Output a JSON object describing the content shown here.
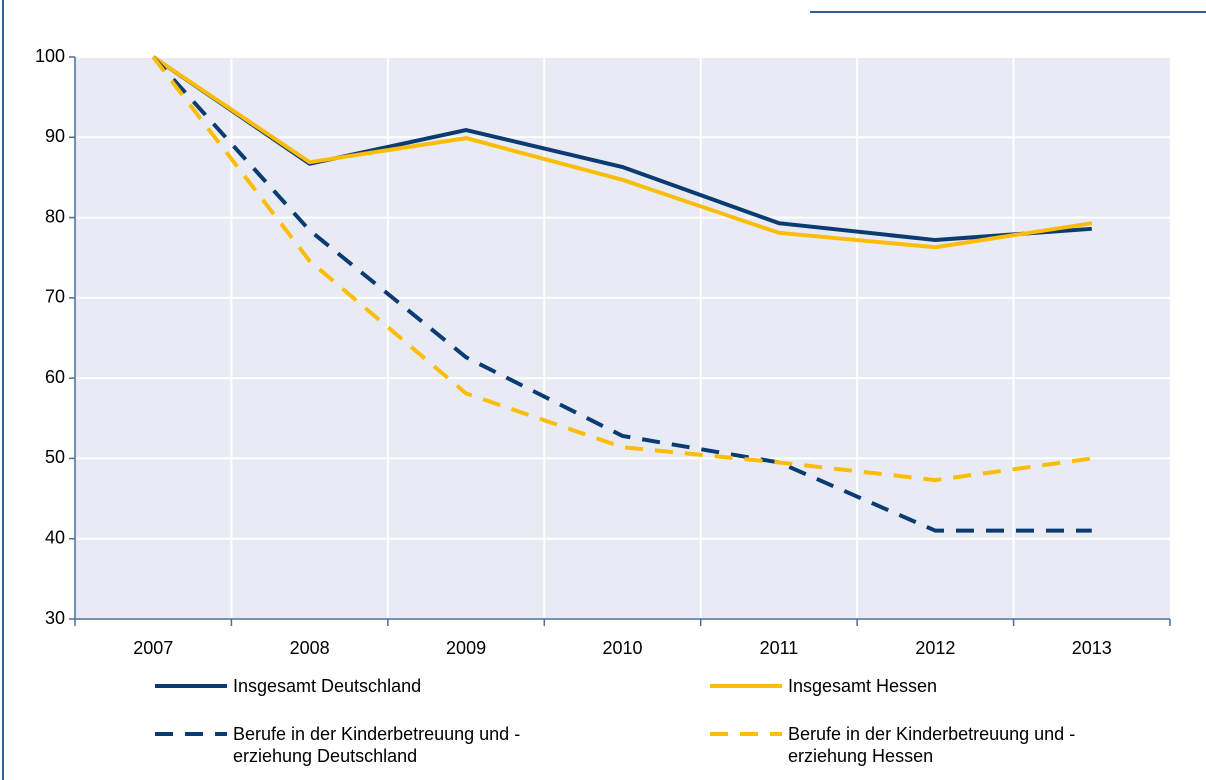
{
  "chart_data": {
    "type": "line",
    "categories": [
      "2007",
      "2008",
      "2009",
      "2010",
      "2011",
      "2012",
      "2013"
    ],
    "series": [
      {
        "name": "Insgesamt Deutschland",
        "color": "#0b3b73",
        "dash": false,
        "values": [
          100,
          86.7,
          90.9,
          86.3,
          79.3,
          77.2,
          78.6
        ]
      },
      {
        "name": "Insgesamt Hessen",
        "color": "#fbbc0a",
        "dash": false,
        "values": [
          100,
          86.9,
          89.9,
          84.7,
          78.1,
          76.3,
          79.3
        ]
      },
      {
        "name": "Berufe in der Kinderbetreuung und -erziehung Deutschland",
        "color": "#0b3b73",
        "dash": true,
        "values": [
          100,
          78.4,
          62.6,
          52.8,
          49.5,
          41.0,
          41.0
        ]
      },
      {
        "name": "Berufe in der Kinderbetreuung und -erziehung Hessen",
        "color": "#fbbc0a",
        "dash": true,
        "values": [
          100,
          74.6,
          58.1,
          51.4,
          49.5,
          47.3,
          50.0
        ]
      }
    ],
    "ylim": [
      30,
      100
    ],
    "yticks": [
      30,
      40,
      50,
      60,
      70,
      80,
      90,
      100
    ],
    "grid": true
  }
}
